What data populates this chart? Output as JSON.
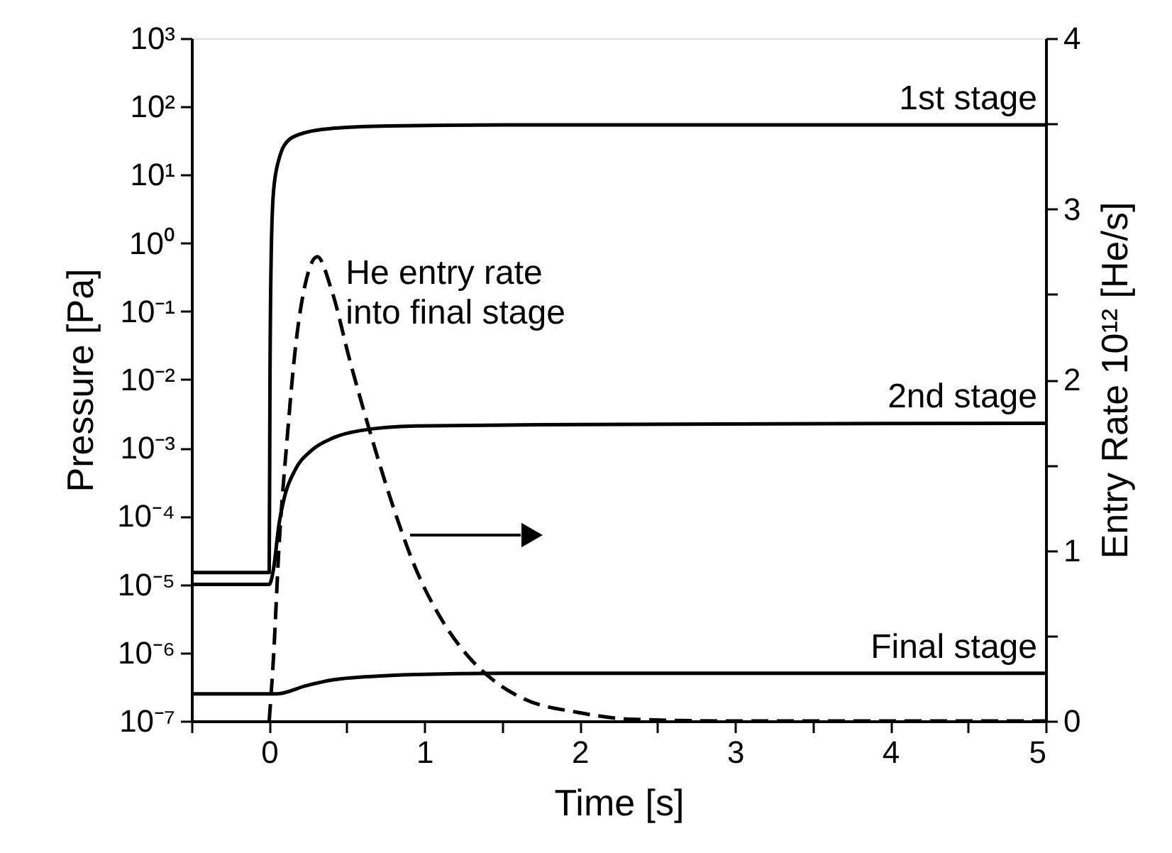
{
  "chart_data": {
    "type": "line",
    "xlabel": "Time   [s]",
    "ylabel": "Pressure   [Pa]",
    "y2label": "Entry Rate   10¹² [He/s]",
    "xlim": [
      -0.5,
      5
    ],
    "ylim": [
      1e-07,
      1000
    ],
    "y2lim": [
      0,
      4
    ],
    "log": "y",
    "grid": false,
    "xticks": [
      {
        "value": -0.5,
        "label": null
      },
      0,
      {
        "value": 0.5,
        "label": null
      },
      1,
      {
        "value": 1.5,
        "label": null
      },
      2,
      {
        "value": 2.5,
        "label": null
      },
      3,
      {
        "value": 3.5,
        "label": null
      },
      4,
      {
        "value": 4.5,
        "label": null
      },
      5
    ],
    "yticks": [
      {
        "value": 1e-07,
        "label": "10⁻⁷"
      },
      {
        "value": 1e-06,
        "label": "10⁻⁶"
      },
      {
        "value": 1e-05,
        "label": "10⁻⁵"
      },
      {
        "value": 0.0001,
        "label": "10⁻⁴"
      },
      {
        "value": 0.001,
        "label": "10⁻³"
      },
      {
        "value": 0.01,
        "label": "10⁻²"
      },
      {
        "value": 0.1,
        "label": "10⁻¹"
      },
      {
        "value": 1,
        "label": "10⁰"
      },
      {
        "value": 10,
        "label": "10¹"
      },
      {
        "value": 100,
        "label": "10²"
      },
      {
        "value": 1000,
        "label": "10³"
      }
    ],
    "y2ticks": [
      0,
      {
        "value": 0.5,
        "label": null
      },
      1,
      {
        "value": 1.5,
        "label": null
      },
      2,
      {
        "value": 2.5,
        "label": null
      },
      3,
      {
        "value": 3.5,
        "label": null
      },
      4
    ],
    "series": [
      {
        "name": "1st stage",
        "color": "#000000",
        "x": [
          -0.5,
          0,
          0.005,
          0.014,
          0.028,
          0.063,
          0.13,
          0.24,
          0.41,
          0.76,
          1.5,
          5
        ],
        "values": [
          1.5e-05,
          1.5e-05,
          0.01,
          0.9,
          5.8,
          17,
          33,
          42,
          48,
          52,
          54,
          54
        ]
      },
      {
        "name": "2nd stage",
        "color": "#000000",
        "x": [
          -0.5,
          0,
          0.028,
          0.063,
          0.098,
          0.168,
          0.27,
          0.41,
          0.59,
          0.94,
          2,
          5
        ],
        "values": [
          1e-05,
          1e-05,
          1.7e-05,
          7.6e-05,
          0.00019,
          0.00048,
          0.00091,
          0.0014,
          0.0018,
          0.0021,
          0.0022,
          0.0023
        ]
      },
      {
        "name": "Final stage",
        "color": "#000000",
        "x": [
          -0.5,
          0.05,
          0.24,
          0.41,
          0.66,
          0.94,
          1.5,
          5
        ],
        "values": [
          2.5e-07,
          2.5e-07,
          3.3e-07,
          4e-07,
          4.5e-07,
          4.8e-07,
          5e-07,
          5e-07
        ]
      },
      {
        "name": "He entry rate\ninto final stage",
        "color": "#000000",
        "axis": "y2",
        "line_style": "dashed",
        "x": [
          0,
          0.028,
          0.063,
          0.116,
          0.168,
          0.24,
          0.31,
          0.4,
          0.52,
          0.66,
          0.8,
          0.94,
          1.12,
          1.29,
          1.47,
          1.64,
          1.99,
          2.34,
          3,
          5
        ],
        "values": [
          0,
          0.38,
          1.02,
          1.66,
          2.18,
          2.59,
          2.72,
          2.53,
          2.11,
          1.66,
          1.25,
          0.9,
          0.58,
          0.37,
          0.22,
          0.13,
          0.05,
          0.01,
          0,
          0
        ]
      }
    ]
  }
}
